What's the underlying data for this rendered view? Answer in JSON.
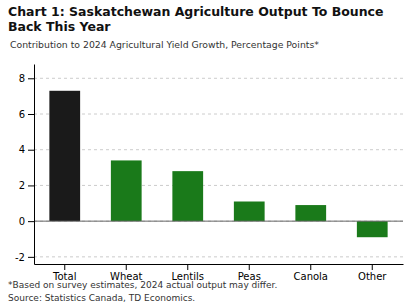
{
  "chart_data": {
    "type": "bar",
    "title": [
      "Chart 1: Saskatchewan Agriculture Output To Bounce",
      "Back This Year"
    ],
    "subtitle": "Contribution to 2024 Agricultural Yield Growth, Percentage Points*",
    "annotations": [
      "*Based on survey estimates, 2024 actual output may differ.",
      "Source: Statistics Canada, TD Economics."
    ],
    "categories": [
      "Total",
      "Wheat",
      "Lentils",
      "Peas",
      "Canola",
      "Other"
    ],
    "values": [
      7.3,
      3.4,
      2.8,
      1.1,
      0.9,
      -0.9
    ],
    "colors": [
      "#1a1a1a",
      "#1a7a1a",
      "#1a7a1a",
      "#1a7a1a",
      "#1a7a1a",
      "#1a7a1a"
    ],
    "ylim": [
      -2.4,
      8.8
    ],
    "yticks": [
      -2,
      0,
      2,
      4,
      6,
      8
    ],
    "grid": true
  }
}
